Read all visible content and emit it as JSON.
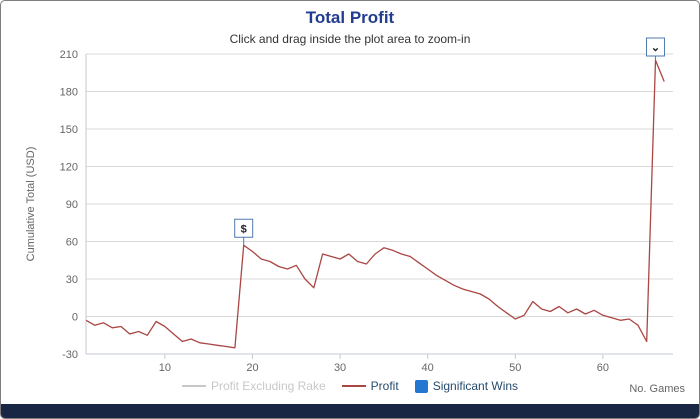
{
  "chart_data": {
    "type": "line",
    "title": "Total Profit",
    "subtitle": "Click and drag inside the plot area to zoom-in",
    "ylabel": "Cumulative Total (USD)",
    "xlabel": "No. Games",
    "xlim": [
      1,
      68
    ],
    "ylim": [
      -30,
      210
    ],
    "yticks": [
      -30,
      0,
      30,
      60,
      90,
      120,
      150,
      180,
      210
    ],
    "xticks": [
      10,
      20,
      30,
      40,
      50,
      60
    ],
    "grid": true,
    "legend_position": "bottom",
    "legend": [
      {
        "label": "Profit Excluding Rake",
        "color": "#c8c8c8",
        "type": "line",
        "disabled": true
      },
      {
        "label": "Profit",
        "color": "#AA4643",
        "type": "line",
        "disabled": false
      },
      {
        "label": "Significant Wins",
        "color": "#2376d2",
        "type": "square",
        "disabled": false
      }
    ],
    "series": [
      {
        "name": "Profit",
        "color": "#AA4643",
        "points": [
          [
            1,
            -3
          ],
          [
            2,
            -7
          ],
          [
            3,
            -5
          ],
          [
            4,
            -9
          ],
          [
            5,
            -8
          ],
          [
            6,
            -14
          ],
          [
            7,
            -12
          ],
          [
            8,
            -15
          ],
          [
            9,
            -4
          ],
          [
            10,
            -8
          ],
          [
            11,
            -14
          ],
          [
            12,
            -20
          ],
          [
            13,
            -18
          ],
          [
            14,
            -21
          ],
          [
            15,
            -22
          ],
          [
            16,
            -23
          ],
          [
            17,
            -24
          ],
          [
            18,
            -25
          ],
          [
            19,
            57
          ],
          [
            20,
            52
          ],
          [
            21,
            46
          ],
          [
            22,
            44
          ],
          [
            23,
            40
          ],
          [
            24,
            38
          ],
          [
            25,
            41
          ],
          [
            26,
            30
          ],
          [
            27,
            23
          ],
          [
            28,
            50
          ],
          [
            29,
            48
          ],
          [
            30,
            46
          ],
          [
            31,
            50
          ],
          [
            32,
            44
          ],
          [
            33,
            42
          ],
          [
            34,
            50
          ],
          [
            35,
            55
          ],
          [
            36,
            53
          ],
          [
            37,
            50
          ],
          [
            38,
            48
          ],
          [
            39,
            43
          ],
          [
            40,
            38
          ],
          [
            41,
            33
          ],
          [
            42,
            29
          ],
          [
            43,
            25
          ],
          [
            44,
            22
          ],
          [
            45,
            20
          ],
          [
            46,
            18
          ],
          [
            47,
            14
          ],
          [
            48,
            8
          ],
          [
            49,
            3
          ],
          [
            50,
            -2
          ],
          [
            51,
            1
          ],
          [
            52,
            12
          ],
          [
            53,
            6
          ],
          [
            54,
            4
          ],
          [
            55,
            8
          ],
          [
            56,
            3
          ],
          [
            57,
            6
          ],
          [
            58,
            2
          ],
          [
            59,
            5
          ],
          [
            60,
            1
          ],
          [
            61,
            -1
          ],
          [
            62,
            -3
          ],
          [
            63,
            -2
          ],
          [
            64,
            -7
          ],
          [
            65,
            -20
          ],
          [
            66,
            205
          ],
          [
            67,
            188
          ]
        ]
      }
    ],
    "flags": [
      {
        "x": 19,
        "y": 57,
        "label": "$"
      },
      {
        "x": 66,
        "y": 205,
        "label": "⌄"
      }
    ]
  },
  "colors": {
    "title": "#223c8f",
    "subtitle": "#333333",
    "axis_text": "#666666",
    "grid": "#d9d9d9",
    "axis_line": "#c3cbd3",
    "profit_line": "#AA4643",
    "significant_wins": "#2376d2",
    "disabled_legend": "#c8c8c8",
    "legend_text": "#274b6d",
    "footer_band": "#1a2744",
    "flag_border": "#4e7ab0"
  }
}
